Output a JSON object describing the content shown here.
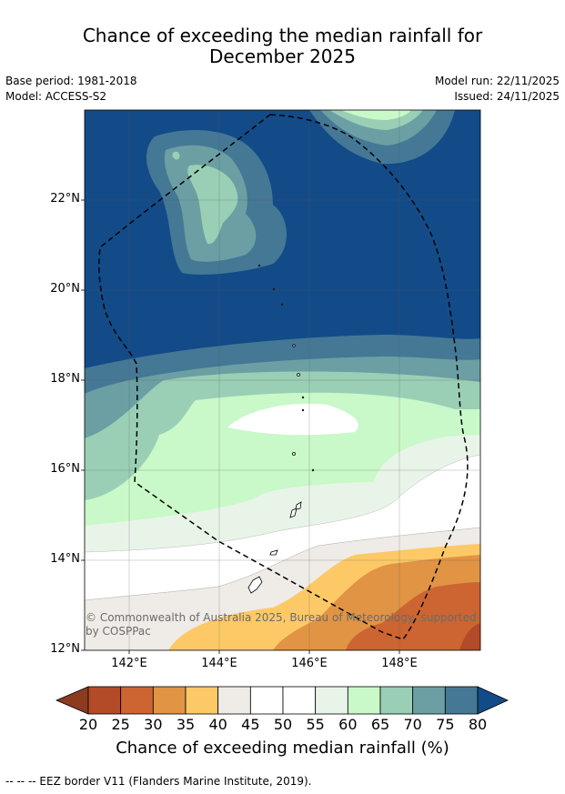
{
  "title": "Chance of exceeding the median rainfall for December 2025",
  "title_line1": "Chance of exceeding the median rainfall for",
  "title_line2": "December 2025",
  "meta": {
    "base_period": "Base period: 1981-2018",
    "model": "Model: ACCESS-S2",
    "model_run": "Model run: 22/11/2025",
    "issued": "Issued: 24/11/2025"
  },
  "map": {
    "lon_range": [
      141,
      149.8
    ],
    "lat_range": [
      12,
      24
    ],
    "x_ticks": [
      "142°E",
      "144°E",
      "146°E",
      "148°E"
    ],
    "y_ticks": [
      "22°N",
      "20°N",
      "18°N",
      "16°N",
      "14°N",
      "12°N"
    ],
    "grid": true,
    "copyright": "© Commonwealth of Australia 2025, Bureau of Meteorology, supported by COSPPac"
  },
  "colorbar": {
    "title": "Chance of exceeding median rainfall (%)",
    "ticks": [
      "20",
      "25",
      "30",
      "35",
      "40",
      "45",
      "50",
      "55",
      "60",
      "65",
      "70",
      "75",
      "80"
    ],
    "colors": [
      "#8c3a20",
      "#b34a28",
      "#cc6531",
      "#e09444",
      "#fdc966",
      "#efebe7",
      "#ffffff",
      "#ffffff",
      "#e9f4e9",
      "#c9f8c9",
      "#9acfb6",
      "#6b9fa3",
      "#447895",
      "#124b88"
    ]
  },
  "footnote": "--  --  -- EEZ border V11 (Flanders Marine Institute, 2019)."
}
